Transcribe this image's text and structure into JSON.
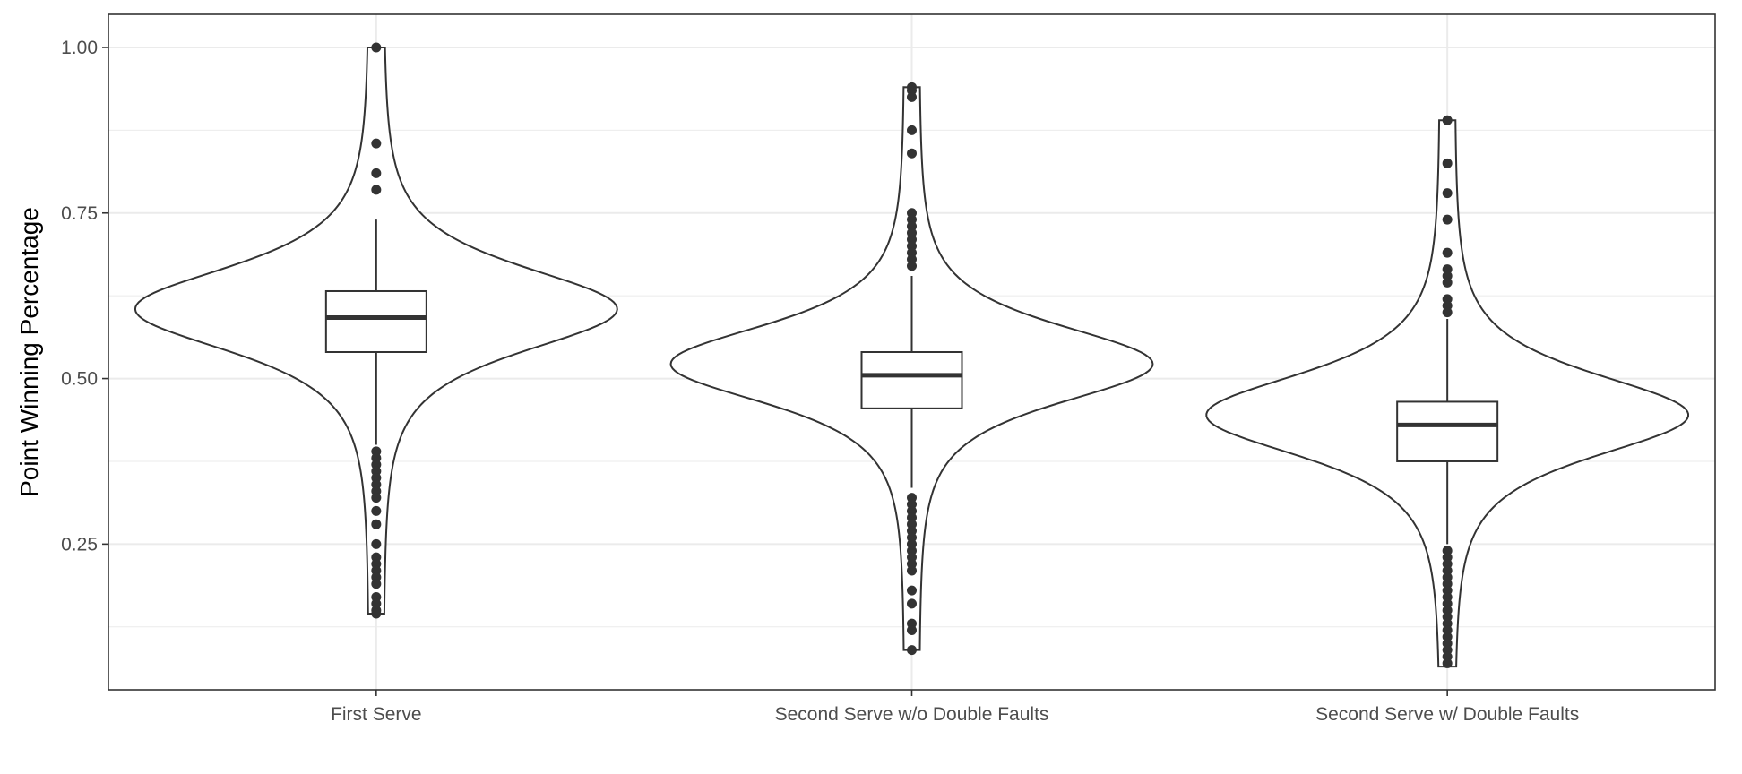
{
  "chart_data": {
    "type": "violin",
    "title": "",
    "xlabel": "",
    "ylabel": "Point Winning Percentage",
    "ylim": [
      0.03,
      1.05
    ],
    "y_ticks": [
      0.25,
      0.5,
      0.75,
      1.0
    ],
    "y_tick_labels": [
      "0.25",
      "0.50",
      "0.75",
      "1.00"
    ],
    "y_minor_ticks": [
      0.125,
      0.375,
      0.625,
      0.875
    ],
    "grid": true,
    "legend": "none",
    "colors": {
      "stroke": "#333333",
      "grid": "#ebebeb",
      "tick_text": "#4d4d4d",
      "fill": "#ffffff"
    },
    "categories": [
      "First Serve",
      "Second Serve w/o Double Faults",
      "Second Serve w/ Double Faults"
    ],
    "series": [
      {
        "category": "First Serve",
        "density_peak": 0.605,
        "box": {
          "q1": 0.54,
          "median": 0.592,
          "q3": 0.632
        },
        "whiskers": [
          0.4,
          0.74
        ],
        "violin_range": [
          0.145,
          1.0
        ],
        "outliers": [
          1.0,
          0.855,
          0.81,
          0.785,
          0.39,
          0.38,
          0.37,
          0.36,
          0.35,
          0.34,
          0.33,
          0.32,
          0.3,
          0.28,
          0.25,
          0.23,
          0.22,
          0.21,
          0.2,
          0.19,
          0.17,
          0.16,
          0.15,
          0.145
        ]
      },
      {
        "category": "Second Serve w/o Double Faults",
        "density_peak": 0.522,
        "box": {
          "q1": 0.455,
          "median": 0.505,
          "q3": 0.54
        },
        "whiskers": [
          0.335,
          0.655
        ],
        "violin_range": [
          0.09,
          0.94
        ],
        "outliers": [
          0.94,
          0.935,
          0.925,
          0.875,
          0.84,
          0.75,
          0.74,
          0.73,
          0.72,
          0.71,
          0.7,
          0.69,
          0.68,
          0.67,
          0.32,
          0.31,
          0.3,
          0.29,
          0.28,
          0.27,
          0.26,
          0.25,
          0.24,
          0.23,
          0.22,
          0.21,
          0.18,
          0.16,
          0.13,
          0.12,
          0.09
        ]
      },
      {
        "category": "Second Serve w/ Double Faults",
        "density_peak": 0.445,
        "box": {
          "q1": 0.375,
          "median": 0.43,
          "q3": 0.465
        },
        "whiskers": [
          0.25,
          0.59
        ],
        "violin_range": [
          0.065,
          0.89
        ],
        "outliers": [
          0.89,
          0.825,
          0.78,
          0.74,
          0.69,
          0.665,
          0.655,
          0.645,
          0.62,
          0.61,
          0.6,
          0.24,
          0.23,
          0.22,
          0.21,
          0.2,
          0.19,
          0.18,
          0.17,
          0.16,
          0.15,
          0.14,
          0.13,
          0.12,
          0.11,
          0.1,
          0.09,
          0.08,
          0.07
        ]
      }
    ]
  }
}
